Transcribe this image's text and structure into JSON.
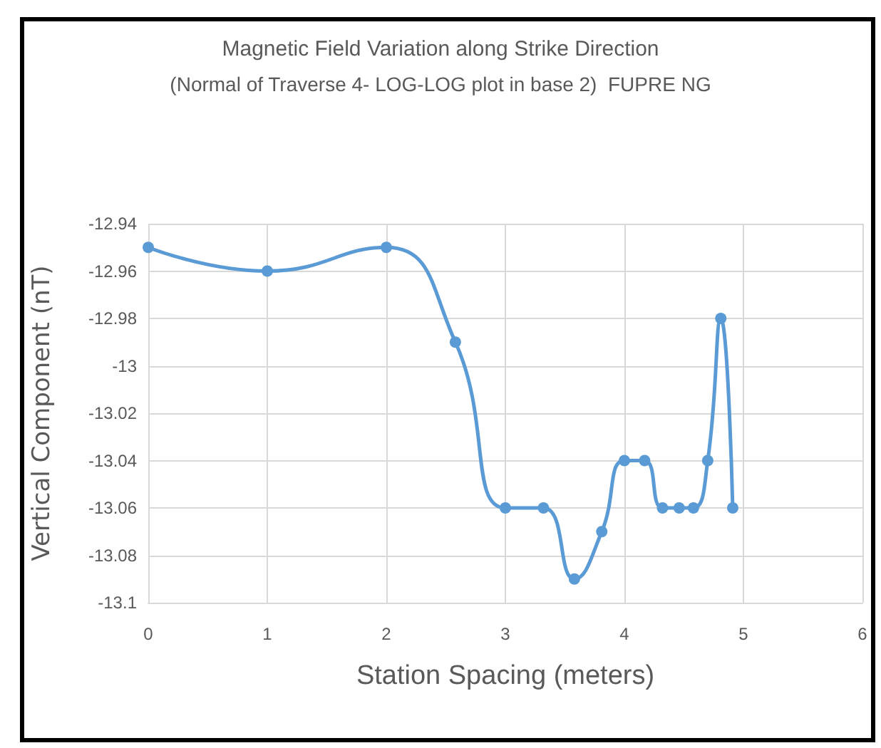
{
  "chart_data": {
    "type": "line",
    "title": "Magnetic Field Variation along Strike Direction",
    "subtitle": "(Normal of Traverse 4- LOG-LOG plot in base 2)  FUPRE NG",
    "xlabel": "Station Spacing (meters)",
    "ylabel": "Vertical Component (nT)",
    "x": [
      0,
      1,
      2,
      2.58,
      3,
      3.32,
      3.58,
      3.81,
      4,
      4.17,
      4.32,
      4.46,
      4.58,
      4.7,
      4.81,
      4.91
    ],
    "series": [
      {
        "color": "#5b9bd5",
        "values": [
          -12.95,
          -12.96,
          -12.95,
          -12.99,
          -13.06,
          -13.06,
          -13.09,
          -13.07,
          -13.04,
          -13.04,
          -13.06,
          -13.06,
          -13.06,
          -13.04,
          -12.98,
          -13.06
        ]
      }
    ],
    "xlim": [
      0,
      6
    ],
    "xticks": [
      0,
      1,
      2,
      3,
      4,
      5,
      6
    ],
    "ylim": [
      -13.1,
      -12.94
    ],
    "yticks": [
      -13.1,
      -13.08,
      -13.06,
      -13.04,
      -13.02,
      -13,
      -12.98,
      -12.96,
      -12.94
    ],
    "grid": true,
    "marker": "circle",
    "line_style": "solid"
  }
}
